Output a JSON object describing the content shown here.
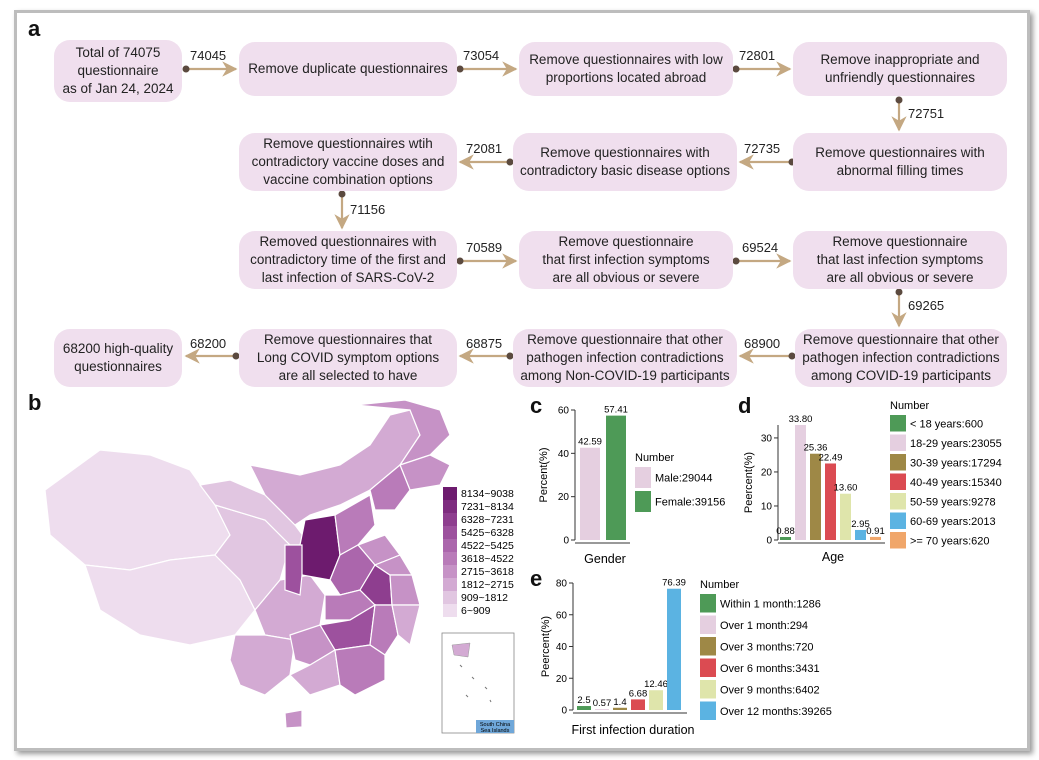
{
  "panels": {
    "a": "a",
    "b": "b",
    "c": "c",
    "d": "d",
    "e": "e"
  },
  "flow": {
    "boxes": [
      "Total of 74075\nquestionnaire\nas of Jan 24, 2024",
      "Remove duplicate questionnaires",
      "Remove questionnaires with low\nproportions located abroad",
      "Remove inappropriate and\nunfriendly questionnaires",
      "Remove questionnaires with\nabnormal filling times",
      "Remove questionnaires with\ncontradictory basic disease options",
      "Remove questionnaires wtih\ncontradictory vaccine doses and\nvaccine combination options",
      "Removed questionnaires with\ncontradictory time of the first and\nlast infection of SARS-CoV-2",
      "Remove questionnaire\nthat first infection symptoms\nare all obvious or severe",
      "Remove questionnaire\nthat last infection symptoms\nare all obvious or severe",
      "Remove questionnaire that other\npathogen infection contradictions\namong COVID-19 participants",
      "Remove questionnaire that other\npathogen infection contradictions\namong Non-COVID-19 participants",
      "Remove questionnaires that\nLong COVID symptom options\nare all selected to have",
      "68200 high-quality\nquestionnaires"
    ],
    "counts": [
      "74045",
      "73054",
      "72801",
      "72751",
      "72735",
      "72081",
      "71156",
      "70589",
      "69524",
      "69265",
      "68900",
      "68875",
      "68200"
    ]
  },
  "map": {
    "legend": [
      "8134~9038",
      "7231~8134",
      "6328~7231",
      "5425~6328",
      "4522~5425",
      "3618~4522",
      "2715~3618",
      "1812~2715",
      "909~1812",
      "6~909"
    ],
    "inset_label_1": "South China",
    "inset_label_2": "Sea Islands",
    "colors": [
      "#6d1b6e",
      "#7e2c7f",
      "#8e3e8f",
      "#9d519e",
      "#ab66ac",
      "#b97bb9",
      "#c692c6",
      "#d3aad3",
      "#e1c6e1",
      "#eeddee"
    ]
  },
  "chart_data": [
    {
      "panel": "c",
      "type": "bar",
      "title": "",
      "xlabel": "Gender",
      "ylabel": "Percent(%)",
      "ylim": [
        0,
        60
      ],
      "yticks": [
        "0",
        "20",
        "40",
        "60"
      ],
      "legend_title": "Number",
      "categories": [
        "Male",
        "Female"
      ],
      "values": [
        42.59,
        57.41
      ],
      "labels": [
        "42.59",
        "57.41"
      ],
      "legend": [
        "Male:29044",
        "Female:39156"
      ],
      "colors": [
        "#e5cfe0",
        "#4e9a57"
      ]
    },
    {
      "panel": "d",
      "type": "bar",
      "title": "",
      "xlabel": "Age",
      "ylabel": "Peercent(%)",
      "ylim": [
        0,
        33.8
      ],
      "yticks": [
        "0",
        "10",
        "20",
        "30"
      ],
      "legend_title": "Number",
      "categories": [
        "< 18 years",
        "18-29 years",
        "30-39 years",
        "40-49 years",
        "50-59 years",
        "60-69 years",
        ">= 70 years"
      ],
      "values": [
        0.88,
        33.8,
        25.36,
        22.49,
        13.6,
        2.95,
        0.91
      ],
      "labels": [
        "0.88",
        "33.80",
        "25.36",
        "22.49",
        "13.60",
        "2.95",
        "0.91"
      ],
      "legend": [
        "< 18 years:600",
        "18-29 years:23055",
        "30-39 years:17294",
        "40-49 years:15340",
        "50-59 years:9278",
        "60-69 years:2013",
        ">= 70 years:620"
      ],
      "colors": [
        "#4e9a57",
        "#e5cfe0",
        "#9e8846",
        "#db4b52",
        "#dfe5ab",
        "#5bb3e2",
        "#f0a66a"
      ]
    },
    {
      "panel": "e",
      "type": "bar",
      "title": "",
      "xlabel": "First infection duration",
      "ylabel": "Peercent(%)",
      "ylim": [
        0,
        80
      ],
      "yticks": [
        "0",
        "20",
        "40",
        "60",
        "80"
      ],
      "legend_title": "Number",
      "categories": [
        "Within 1 month",
        "Over 1 month",
        "Over 3 months",
        "Over 6 months",
        "Over 9 months",
        "Over 12 months"
      ],
      "values": [
        2.5,
        0.57,
        1.4,
        6.68,
        12.46,
        76.39
      ],
      "labels": [
        "2.5",
        "0.57",
        "1.4",
        "6.68",
        "12.46",
        "76.39"
      ],
      "legend": [
        "Within 1 month:1286",
        "Over 1 month:294",
        "Over 3 months:720",
        "Over 6 months:3431",
        "Over 9 months:6402",
        "Over 12 months:39265"
      ],
      "colors": [
        "#4e9a57",
        "#e5cfe0",
        "#9e8846",
        "#db4b52",
        "#dfe5ab",
        "#5bb3e2"
      ]
    }
  ]
}
